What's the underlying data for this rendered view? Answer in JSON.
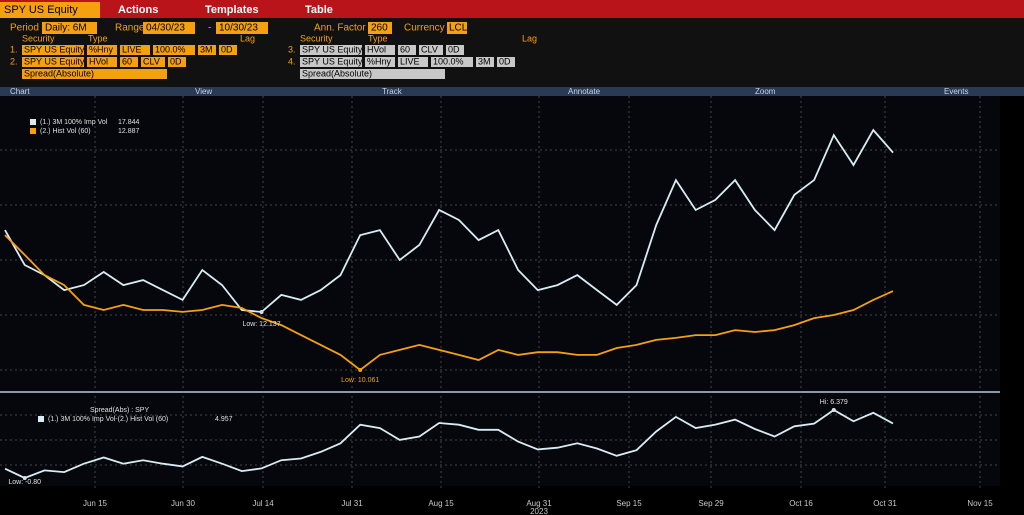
{
  "header": {
    "ticker": "SPY US Equity",
    "menus": [
      "Actions",
      "Templates",
      "Table"
    ],
    "period_label": "Period",
    "period": "Daily: 6M",
    "range_label": "Range",
    "range_start": "04/30/23",
    "range_sep": "-",
    "range_end": "10/30/23",
    "ann_factor_label": "Ann. Factor",
    "ann_factor": "260",
    "currency_label": "Currency",
    "currency": "LCL"
  },
  "securities": {
    "headers": [
      "Security",
      "Type",
      "Lag"
    ],
    "rows": [
      [
        "1.",
        "SPY US Equity",
        "%Hny",
        "LIVE",
        "100.0%",
        "3M",
        "0D"
      ],
      [
        "2.",
        "SPY US Equity",
        "HVol",
        "60",
        "CLV",
        "0D"
      ],
      [
        "",
        "Spread(Absolute)"
      ],
      [
        "3.",
        "SPY US Equity",
        "HVol",
        "60",
        "CLV",
        "0D"
      ],
      [
        "4.",
        "SPY US Equity",
        "%Hny",
        "LIVE",
        "100.0%",
        "3M",
        "0D"
      ],
      [
        "",
        "Spread(Absolute)"
      ]
    ]
  },
  "tabs": [
    "Chart",
    "View",
    "Track",
    "Annotate",
    "Zoom",
    "Events"
  ],
  "chart": {
    "series": [
      {
        "name": "(1.) 3M 100% Imp Vol",
        "color": "#d8ecf4",
        "values": [
          15.07,
          13.82,
          13.46,
          12.92,
          13.1,
          13.57,
          13.1,
          13.28,
          12.92,
          12.57,
          13.64,
          13.1,
          12.21,
          12.137,
          12.75,
          12.57,
          12.92,
          13.46,
          14.89,
          15.07,
          14.0,
          14.54,
          15.79,
          15.43,
          14.71,
          15.07,
          13.64,
          12.92,
          13.1,
          13.46,
          12.92,
          12.39,
          13.1,
          15.25,
          16.86,
          15.79,
          16.15,
          16.86,
          15.79,
          15.07,
          16.33,
          16.86,
          18.47,
          17.4,
          18.65,
          17.844
        ]
      },
      {
        "name": "(2.) Hist Vol (60)",
        "color": "#f5a00f",
        "values": [
          14.89,
          14.18,
          13.46,
          13.1,
          12.39,
          12.21,
          12.39,
          12.21,
          12.21,
          12.14,
          12.21,
          12.39,
          12.28,
          11.92,
          11.67,
          11.31,
          10.96,
          10.6,
          10.061,
          10.6,
          10.78,
          10.96,
          10.78,
          10.6,
          10.42,
          10.78,
          10.6,
          10.7,
          10.7,
          10.6,
          10.6,
          10.85,
          10.96,
          11.14,
          11.21,
          11.31,
          11.31,
          11.49,
          11.42,
          11.49,
          11.67,
          11.92,
          12.03,
          12.21,
          12.57,
          12.887
        ]
      }
    ],
    "annotations": [
      "Low: 12.137",
      "Low: 10.061"
    ],
    "spread_title": "Spread(Abs) : SPY",
    "spread": {
      "name": "(1.) 3M 100% Imp Vol-(2.) Hist Vol (60)",
      "color": "#d8ecf4",
      "values": [
        0.18,
        -0.8,
        0,
        -0.18,
        0.71,
        1.36,
        0.71,
        1.07,
        0.71,
        0.43,
        1.43,
        0.71,
        -0.07,
        0.217,
        1.08,
        1.26,
        1.96,
        2.86,
        4.83,
        4.47,
        3.22,
        3.58,
        5.01,
        4.83,
        4.29,
        4.29,
        3.04,
        2.22,
        2.4,
        2.86,
        2.32,
        1.54,
        2.14,
        4.11,
        5.65,
        4.48,
        4.84,
        5.37,
        4.37,
        3.58,
        4.66,
        4.94,
        6.379,
        5.19,
        6.08,
        4.957
      ]
    },
    "spread_annotations": [
      "Low: -0.80",
      "Hi: 6.379"
    ],
    "x_labels": [
      "Jun 15",
      "Jun 30",
      "Jul 14",
      "Jul 31",
      "Aug 15",
      "Aug 31",
      "Sep 15",
      "Sep 29",
      "Oct 16",
      "Oct 31",
      "Nov 15"
    ],
    "year": "2023"
  }
}
